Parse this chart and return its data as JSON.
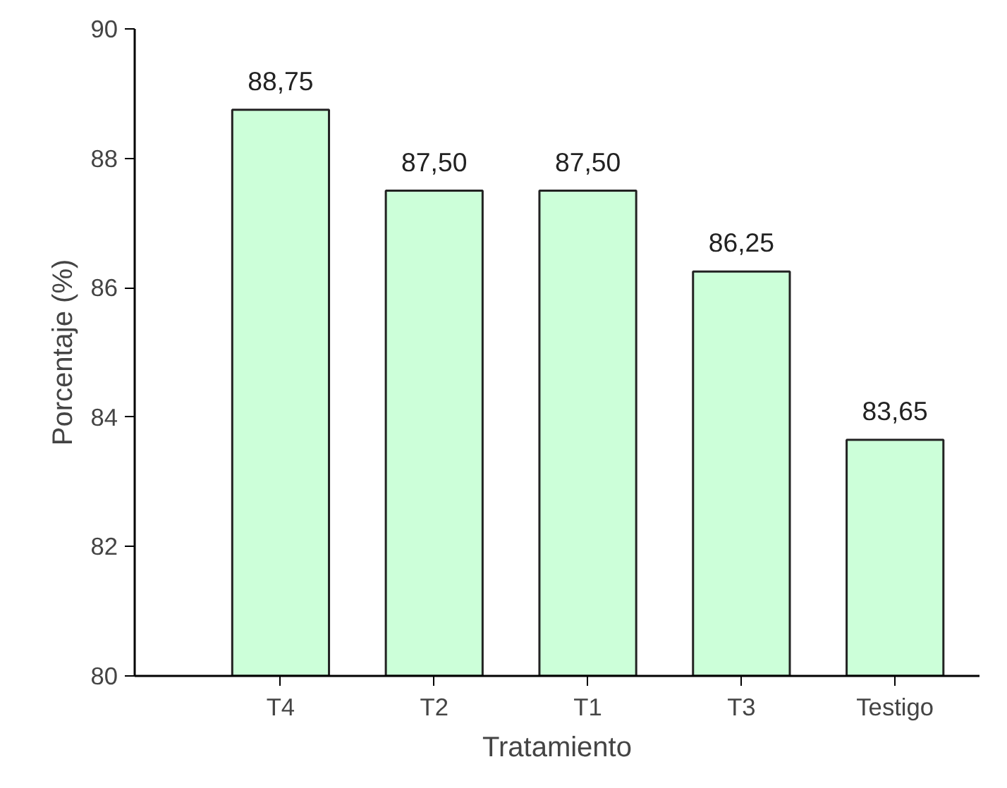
{
  "chart_data": {
    "type": "bar",
    "xlabel": "Tratamiento",
    "ylabel": "Porcentaje (%)",
    "categories": [
      "T4",
      "T2",
      "T1",
      "T3",
      "Testigo"
    ],
    "values": [
      88.75,
      87.5,
      87.5,
      86.25,
      83.65
    ],
    "value_labels": [
      "88,75",
      "87,50",
      "87,50",
      "86,25",
      "83,65"
    ],
    "color": "#ccffd9",
    "ylim": [
      80,
      90
    ],
    "yticks": [
      80,
      82,
      84,
      86,
      88,
      90
    ],
    "grid": false
  }
}
